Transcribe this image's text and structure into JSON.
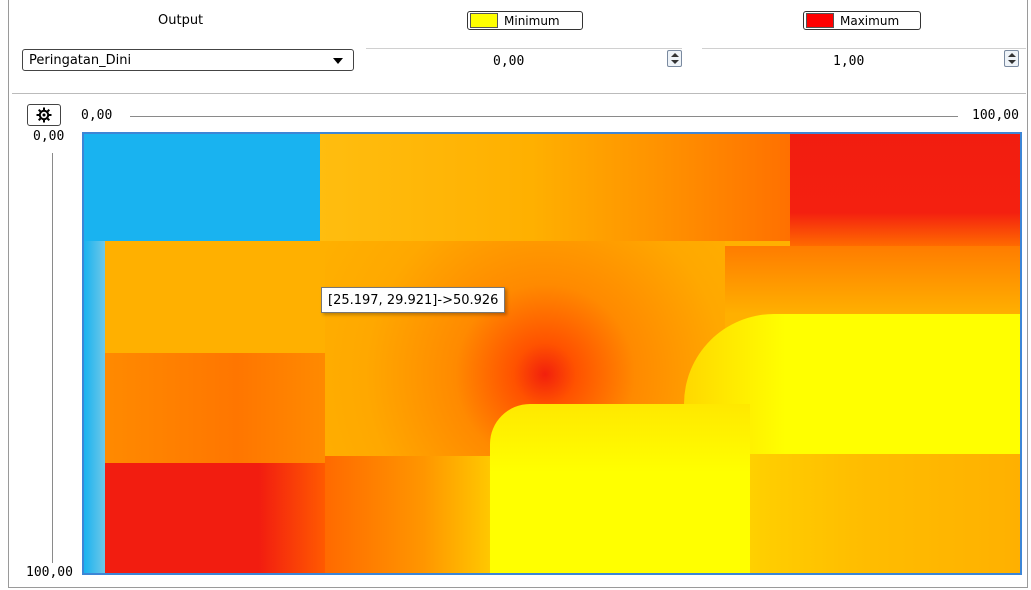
{
  "header": {
    "output_label": "Output",
    "minimum_label": "Minimum",
    "maximum_label": "Maximum",
    "minimum_color": "#ffff00",
    "maximum_color": "#ff0000"
  },
  "controls": {
    "output_select_value": "Peringatan_Dini",
    "minimum_value": "0,00",
    "maximum_value": "1,00"
  },
  "plot": {
    "settings_icon": "gear-icon",
    "x_axis_min": "0,00",
    "x_axis_max": "100,00",
    "y_axis_min": "0,00",
    "y_axis_max": "100,00",
    "tooltip": "[25.197, 29.921]->50.926",
    "colors": {
      "low": "#19b3f0",
      "mid": "#ffb000",
      "orange": "#ff8a00",
      "high": "#f21d10",
      "peak": "#ffff00"
    }
  }
}
